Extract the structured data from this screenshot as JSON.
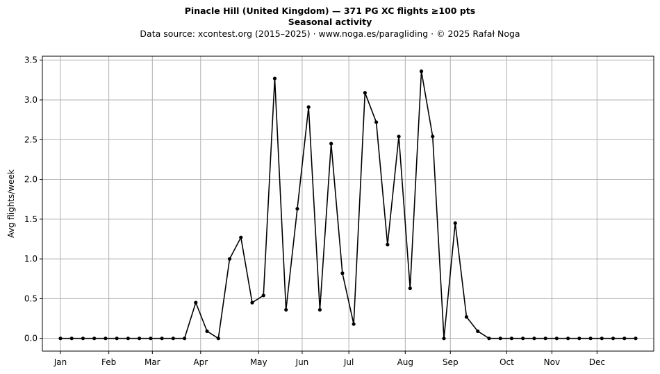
{
  "header": {
    "title": "Pinacle Hill (United Kingdom)  —  371 PG XC flights ≥100 pts",
    "subtitle": "Seasonal activity",
    "source": "Data source: xcontest.org (2015–2025)  ·  www.noga.es/paragliding  ·  © 2025 Rafał Noga"
  },
  "chart_data": {
    "type": "line",
    "title": "Pinacle Hill (United Kingdom)  —  371 PG XC flights ≥100 pts",
    "subtitle": "Seasonal activity",
    "xlabel": "",
    "ylabel": "Avg flights/week",
    "x": [
      1,
      2,
      3,
      4,
      5,
      6,
      7,
      8,
      9,
      10,
      11,
      12,
      13,
      14,
      15,
      16,
      17,
      18,
      19,
      20,
      21,
      22,
      23,
      24,
      25,
      26,
      27,
      28,
      29,
      30,
      31,
      32,
      33,
      34,
      35,
      36,
      37,
      38,
      39,
      40,
      41,
      42,
      43,
      44,
      45,
      46,
      47,
      48,
      49,
      50,
      51,
      52
    ],
    "series": [
      {
        "values": [
          0,
          0,
          0,
          0,
          0,
          0,
          0,
          0,
          0,
          0,
          0,
          0,
          0.45,
          0.09,
          0,
          1.0,
          1.27,
          0.45,
          0.54,
          3.27,
          0.36,
          1.63,
          2.91,
          0.36,
          2.45,
          0.82,
          0.18,
          3.09,
          2.72,
          1.18,
          2.54,
          0.63,
          3.36,
          2.54,
          0,
          1.45,
          0.27,
          0.09,
          0,
          0,
          0,
          0,
          0,
          0,
          0,
          0,
          0,
          0,
          0,
          0,
          0,
          0
        ],
        "color": "#000000"
      }
    ],
    "xlim": [
      -0.6,
      53.6
    ],
    "ylim": [
      -0.16,
      3.55
    ],
    "yticks": [
      "0.0",
      "0.5",
      "1.0",
      "1.5",
      "2.0",
      "2.5",
      "3.0",
      "3.5"
    ],
    "xticks": [
      {
        "label": "Jan",
        "x": 1
      },
      {
        "label": "Feb",
        "x": 5.29
      },
      {
        "label": "Mar",
        "x": 9.15
      },
      {
        "label": "Apr",
        "x": 13.43
      },
      {
        "label": "May",
        "x": 18.57
      },
      {
        "label": "Jun",
        "x": 22.43
      },
      {
        "label": "Jul",
        "x": 26.57
      },
      {
        "label": "Aug",
        "x": 31.57
      },
      {
        "label": "Sep",
        "x": 35.57
      },
      {
        "label": "Oct",
        "x": 40.57
      },
      {
        "label": "Nov",
        "x": 44.57
      },
      {
        "label": "Dec",
        "x": 48.57
      }
    ],
    "grid": true,
    "marker": "dot",
    "line_color": "#000000",
    "grid_color": "#b0b0b0"
  }
}
